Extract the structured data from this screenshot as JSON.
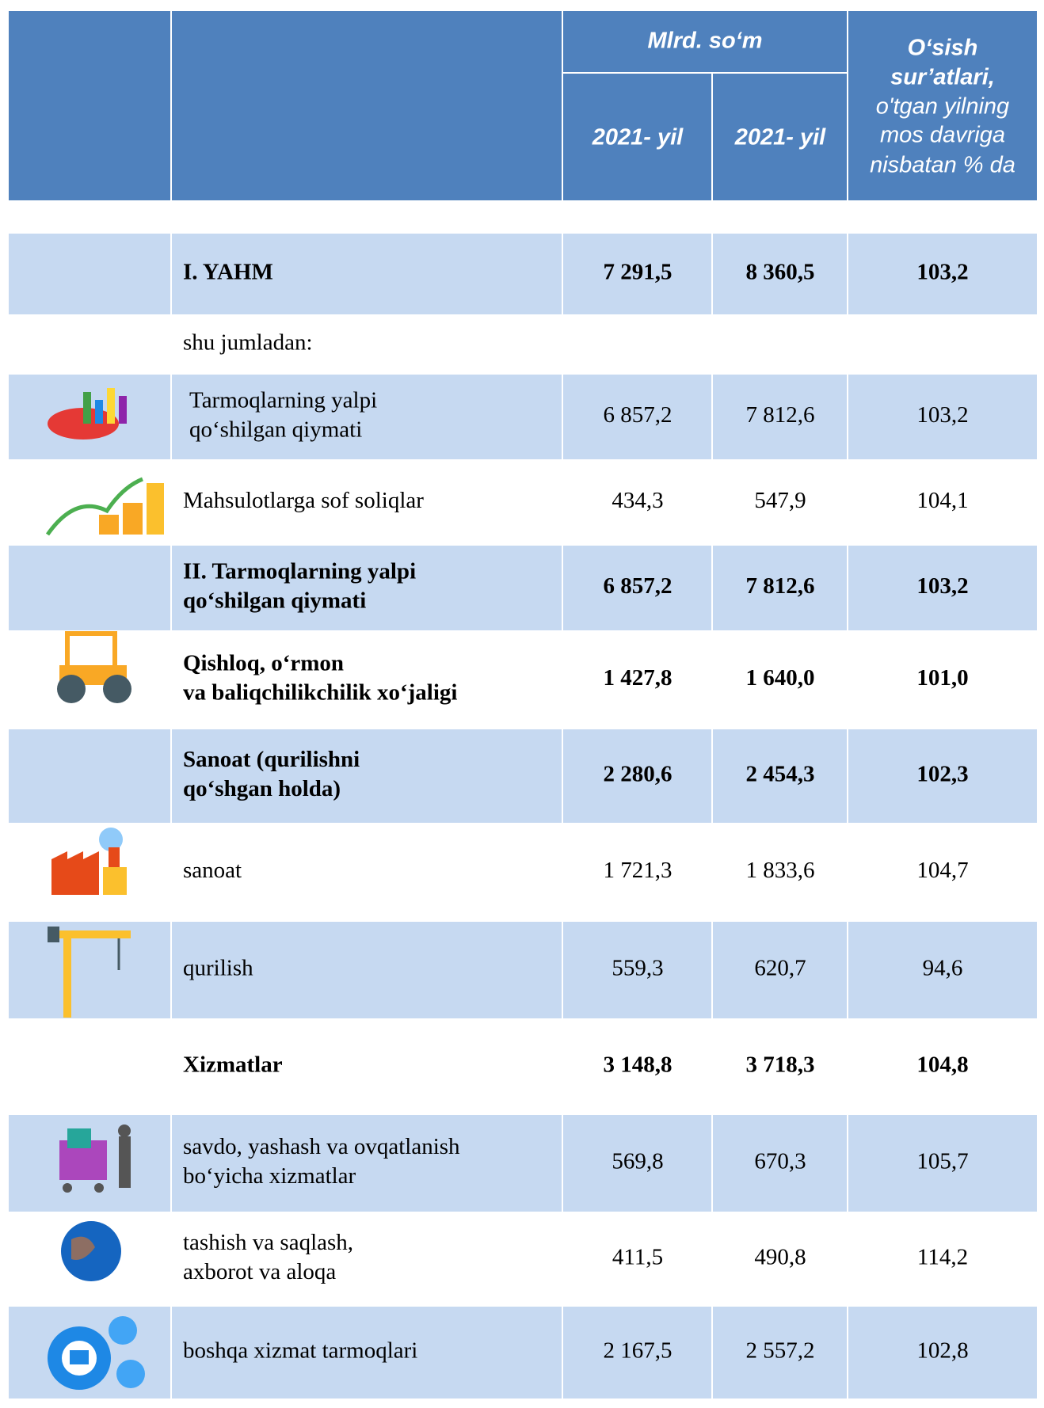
{
  "header": {
    "group": "Mlrd. so‘m",
    "year_1": "2021- yil",
    "year_2": "2021- yil",
    "growth_title": [
      "O‘sish",
      "sur’atlari,"
    ],
    "growth_note": [
      "o'tgan yilning",
      "mos davriga",
      "nisbatan % da"
    ]
  },
  "table": {
    "rows": [
      {
        "label": [
          "I. YAHM"
        ],
        "values": [
          "7 291,5",
          "8 360,5",
          "103,2"
        ],
        "bold": true,
        "shaded": true
      },
      {
        "label": [
          "shu jumladan:"
        ],
        "values": [],
        "bold": false,
        "shaded": false
      },
      {
        "label": [
          "Tarmoqlarning yalpi",
          "qo‘shilgan qiymati"
        ],
        "values": [
          "6 857,2",
          "7 812,6",
          "103,2"
        ],
        "bold": false,
        "shaded": true
      },
      {
        "label": [
          "Mahsulotlarga sof soliqlar"
        ],
        "values": [
          "434,3",
          "547,9",
          "104,1"
        ],
        "bold": false,
        "shaded": false
      },
      {
        "label": [
          "II.   Tarmoqlarning yalpi",
          "qo‘shilgan qiymati"
        ],
        "values": [
          "6 857,2",
          "7 812,6",
          "103,2"
        ],
        "bold": true,
        "shaded": true
      },
      {
        "label": [
          "Qishloq, o‘rmon",
          "va baliqchilikchilik xo‘jaligi"
        ],
        "values": [
          "1 427,8",
          "1 640,0",
          "101,0"
        ],
        "bold": true,
        "shaded": false
      },
      {
        "label": [
          "Sanoat (qurilishni",
          "qo‘shgan holda)"
        ],
        "values": [
          "2 280,6",
          "2 454,3",
          "102,3"
        ],
        "bold": true,
        "shaded": true
      },
      {
        "label": [
          "sanoat"
        ],
        "values": [
          "1 721,3",
          "1 833,6",
          "104,7"
        ],
        "bold": false,
        "shaded": false
      },
      {
        "label": [
          "qurilish"
        ],
        "values": [
          "559,3",
          "620,7",
          "94,6"
        ],
        "bold": false,
        "shaded": true
      },
      {
        "label": [
          "Xizmatlar"
        ],
        "values": [
          "3 148,8",
          "3 718,3",
          "104,8"
        ],
        "bold": true,
        "shaded": false
      },
      {
        "label": [
          "savdo, yashash va ovqatlanish",
          "bo‘yicha xizmatlar"
        ],
        "values": [
          "569,8",
          "670,3",
          "105,7"
        ],
        "bold": false,
        "shaded": true
      },
      {
        "label": [
          "tashish va saqlash,",
          "axborot va aloqa"
        ],
        "values": [
          "411,5",
          "490,8",
          "114,2"
        ],
        "bold": false,
        "shaded": false
      },
      {
        "label": [
          "boshqa xizmat tarmoqlari"
        ],
        "values": [
          "2 167,5",
          "2 557,2",
          "102,8"
        ],
        "bold": false,
        "shaded": true
      }
    ]
  }
}
